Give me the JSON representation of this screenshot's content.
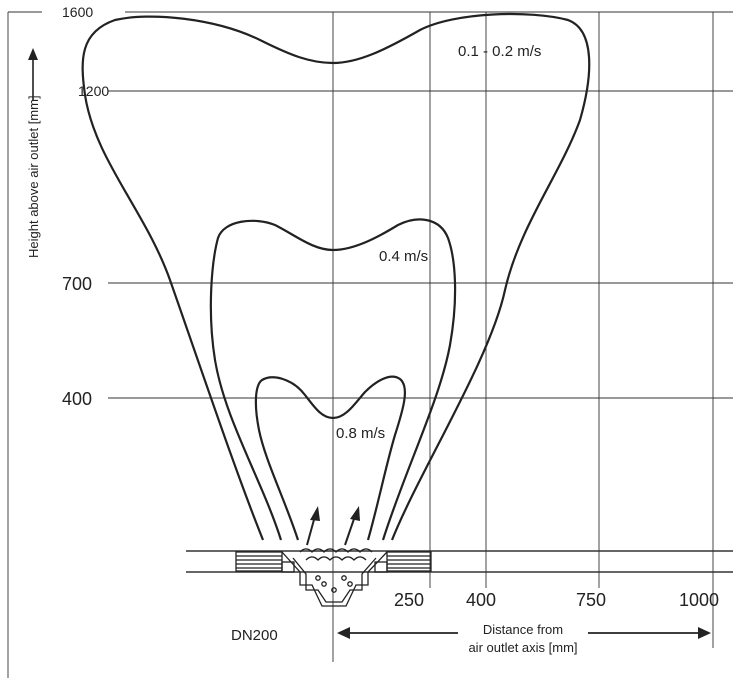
{
  "y_axis": {
    "label": "Height above air outlet [mm]",
    "ticks": [
      "1600",
      "1200",
      "700",
      "400"
    ]
  },
  "x_axis": {
    "label_line1": "Distance from",
    "label_line2": "air outlet axis [mm]",
    "ticks": [
      "250",
      "400",
      "750",
      "1000"
    ]
  },
  "device_label": "DN200",
  "isovels": [
    {
      "label": "0.1 - 0.2 m/s",
      "velocity_range_m_s": [
        0.1,
        0.2
      ]
    },
    {
      "label": "0.4 m/s",
      "velocity_m_s": 0.4
    },
    {
      "label": "0.8 m/s",
      "velocity_m_s": 0.8
    }
  ]
}
